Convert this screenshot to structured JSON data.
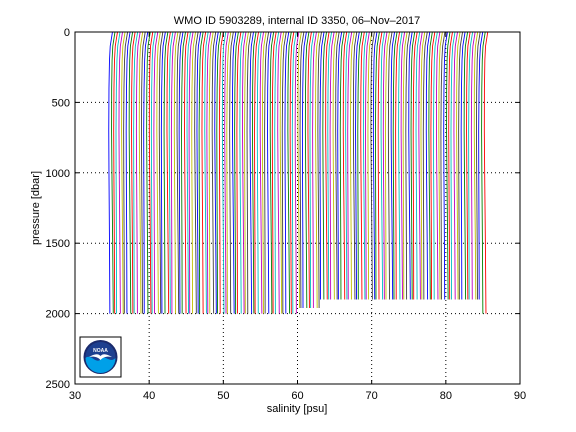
{
  "chart_data": {
    "type": "line",
    "title": "WMO ID 5903289, internal ID 3350, 06–Nov–2017",
    "xlabel": "salinity [psu]",
    "ylabel": "pressure [dbar]",
    "xlim": [
      30,
      90
    ],
    "ylim": [
      0,
      2500
    ],
    "y_reversed": true,
    "grid": true,
    "x_ticks": [
      30,
      40,
      50,
      60,
      70,
      80,
      90
    ],
    "y_ticks": [
      0,
      500,
      1000,
      1500,
      2000,
      2500
    ],
    "x_tick_labels": [
      "30",
      "40",
      "50",
      "60",
      "70",
      "80",
      "90"
    ],
    "y_tick_labels": [
      "0",
      "500",
      "1000",
      "1500",
      "2000",
      "2500"
    ],
    "series_colors": [
      "#0000ff",
      "#008000",
      "#ff0000",
      "#00bfbf",
      "#bf00bf",
      "#bfbf00",
      "#404040"
    ],
    "profiles": {
      "count": 150,
      "first_offset": 34.7,
      "last_offset": 85.3,
      "profile_shape": [
        {
          "pressure": 0,
          "salinity": 0.35
        },
        {
          "pressure": 50,
          "salinity": 0.2
        },
        {
          "pressure": 100,
          "salinity": 0.05
        },
        {
          "pressure": 200,
          "salinity": -0.05
        },
        {
          "pressure": 400,
          "salinity": -0.12
        },
        {
          "pressure": 700,
          "salinity": -0.15
        },
        {
          "pressure": 1000,
          "salinity": -0.12
        },
        {
          "pressure": 1500,
          "salinity": -0.05
        },
        {
          "pressure": 2000,
          "salinity": 0.0
        }
      ],
      "max_pressure_by_range": [
        {
          "from": 34.7,
          "to": 60.0,
          "max_pressure": 2000
        },
        {
          "from": 60.0,
          "to": 63.0,
          "max_pressure": 1960
        },
        {
          "from": 63.0,
          "to": 84.9,
          "max_pressure": 1900
        },
        {
          "from": 84.9,
          "to": 85.3,
          "max_pressure": 2000
        }
      ]
    }
  },
  "logo": {
    "text": "NOAA",
    "ring_color": "#1a2a6c",
    "upper_color": "#1d3f8f",
    "lower_color": "#00a0e8"
  }
}
